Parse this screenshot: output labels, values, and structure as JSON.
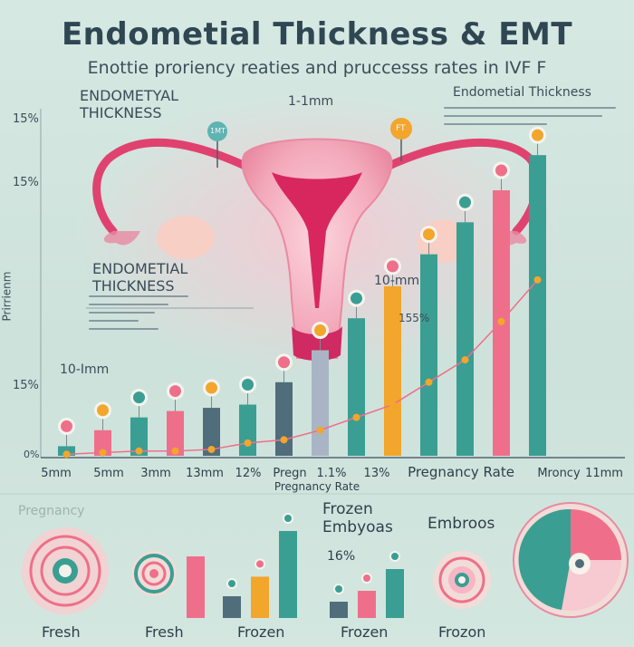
{
  "header": {
    "title": "Endometial Thickness & EMT",
    "subtitle": "Enottie proriency reaties and pruccesss rates in IVF   F"
  },
  "annotations": {
    "left_top": "ENDOMETYAL\nTHICKNESS",
    "center_top": "1-1mm",
    "right_top": "Endometial Thickness",
    "mid_left": "ENDOMETIAL\nTHICKNESS",
    "mid_right": "10-mm",
    "bar_label": "155%",
    "left_low": "10-Imm",
    "badge_top": "1MT",
    "badge_small": "FT"
  },
  "chart_data": {
    "type": "bar",
    "ylabel": "Prirrienm",
    "y_ticks": [
      "15%",
      "15%",
      "15%",
      "0%"
    ],
    "xlabel": "Pregnancy Rate",
    "x_labels": [
      "5mm",
      "5mm",
      "3mm",
      "13mm",
      "12%",
      "Pregn",
      "1.1%",
      "13%",
      "Pregnancy Rate",
      "Mroncy",
      "11mm"
    ],
    "colors": [
      "#3a9e93",
      "#ef6f8a",
      "#f2a62c",
      "#4f6d7a",
      "#f3c9a6"
    ],
    "bars": [
      {
        "value": 3,
        "color": "#3a9e93"
      },
      {
        "value": 8,
        "color": "#ef6f8a"
      },
      {
        "value": 12,
        "color": "#3a9e93"
      },
      {
        "value": 14,
        "color": "#ef6f8a"
      },
      {
        "value": 15,
        "color": "#4f6d7a"
      },
      {
        "value": 16,
        "color": "#3a9e93"
      },
      {
        "value": 23,
        "color": "#4f6d7a"
      },
      {
        "value": 33,
        "color": "#a9b5c5"
      },
      {
        "value": 43,
        "color": "#3a9e93"
      },
      {
        "value": 53,
        "color": "#f2a62c"
      },
      {
        "value": 63,
        "color": "#3a9e93"
      },
      {
        "value": 73,
        "color": "#3a9e93"
      },
      {
        "value": 83,
        "color": "#ef6f8a"
      },
      {
        "value": 94,
        "color": "#3a9e93"
      }
    ],
    "trend": [
      0.5,
      1,
      1.5,
      1.5,
      2,
      4,
      5,
      8,
      12,
      16,
      23,
      30,
      42,
      55
    ]
  },
  "bottom": {
    "labels": {
      "pregnancy": "Pregnancy",
      "fresh1": "Fresh",
      "fresh2": "Fresh",
      "frozen1": "Frozen",
      "frozen_embryos": "Frozen\nEmbyoas",
      "embroos": "Embroos",
      "pct": "16%",
      "frozen2": "Frozen",
      "frozon": "Frozon"
    },
    "mini_bars_a": [
      {
        "value": 20,
        "color": "#4f6d7a"
      },
      {
        "value": 38,
        "color": "#f2a62c"
      },
      {
        "value": 80,
        "color": "#3a9e93"
      }
    ],
    "mini_bars_b": [
      {
        "value": 15,
        "color": "#4f6d7a"
      },
      {
        "value": 25,
        "color": "#ef6f8a"
      },
      {
        "value": 45,
        "color": "#3a9e93"
      }
    ]
  }
}
